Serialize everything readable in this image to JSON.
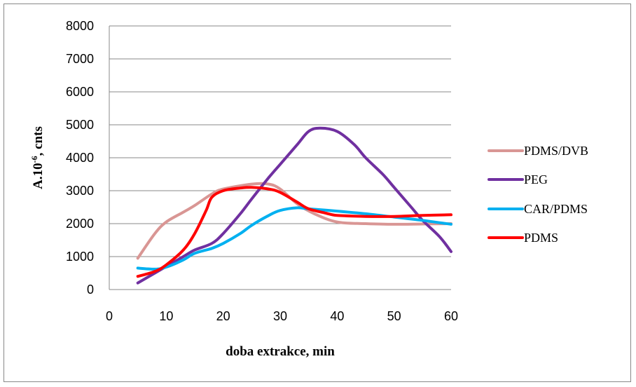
{
  "chart_data": {
    "type": "line",
    "title": "",
    "xlabel": "doba extrakce, min",
    "ylabel_main": "A.10",
    "ylabel_sup": "-6",
    "ylabel_rest": ", cnts",
    "xlim": [
      0,
      60
    ],
    "ylim": [
      0,
      8000
    ],
    "x_ticks": [
      "0",
      "10",
      "20",
      "30",
      "40",
      "50",
      "60"
    ],
    "y_ticks": [
      "0",
      "1000",
      "2000",
      "3000",
      "4000",
      "5000",
      "6000",
      "7000",
      "8000"
    ],
    "grid": "horizontal",
    "legend_position": "right",
    "series": [
      {
        "name": "PDMS/DVB",
        "color": "#D99694",
        "points": [
          [
            5,
            950
          ],
          [
            8,
            1700
          ],
          [
            10,
            2050
          ],
          [
            13,
            2350
          ],
          [
            15,
            2550
          ],
          [
            18,
            2900
          ],
          [
            20,
            3050
          ],
          [
            25,
            3200
          ],
          [
            28,
            3200
          ],
          [
            30,
            3050
          ],
          [
            33,
            2600
          ],
          [
            36,
            2300
          ],
          [
            40,
            2050
          ],
          [
            45,
            2000
          ],
          [
            50,
            1980
          ],
          [
            55,
            1990
          ],
          [
            60,
            2000
          ]
        ]
      },
      {
        "name": "PEG",
        "color": "#7030A0",
        "points": [
          [
            5,
            200
          ],
          [
            8,
            500
          ],
          [
            10,
            700
          ],
          [
            13,
            1000
          ],
          [
            15,
            1200
          ],
          [
            18,
            1400
          ],
          [
            20,
            1700
          ],
          [
            23,
            2300
          ],
          [
            25,
            2750
          ],
          [
            28,
            3400
          ],
          [
            30,
            3800
          ],
          [
            33,
            4400
          ],
          [
            35,
            4800
          ],
          [
            37,
            4900
          ],
          [
            40,
            4800
          ],
          [
            43,
            4400
          ],
          [
            45,
            4000
          ],
          [
            48,
            3500
          ],
          [
            50,
            3100
          ],
          [
            53,
            2500
          ],
          [
            55,
            2100
          ],
          [
            58,
            1600
          ],
          [
            60,
            1150
          ]
        ]
      },
      {
        "name": "CAR/PDMS",
        "color": "#00B0F0",
        "points": [
          [
            5,
            650
          ],
          [
            8,
            620
          ],
          [
            10,
            680
          ],
          [
            13,
            900
          ],
          [
            15,
            1100
          ],
          [
            18,
            1250
          ],
          [
            20,
            1400
          ],
          [
            23,
            1700
          ],
          [
            25,
            1950
          ],
          [
            28,
            2250
          ],
          [
            30,
            2400
          ],
          [
            33,
            2480
          ],
          [
            35,
            2450
          ],
          [
            40,
            2380
          ],
          [
            45,
            2300
          ],
          [
            50,
            2200
          ],
          [
            55,
            2100
          ],
          [
            60,
            1980
          ]
        ]
      },
      {
        "name": "PDMS",
        "color": "#FF0000",
        "points": [
          [
            5,
            400
          ],
          [
            8,
            550
          ],
          [
            10,
            750
          ],
          [
            13,
            1200
          ],
          [
            15,
            1700
          ],
          [
            17,
            2400
          ],
          [
            18,
            2800
          ],
          [
            20,
            3000
          ],
          [
            23,
            3080
          ],
          [
            25,
            3100
          ],
          [
            28,
            3050
          ],
          [
            30,
            2950
          ],
          [
            33,
            2650
          ],
          [
            35,
            2450
          ],
          [
            38,
            2320
          ],
          [
            40,
            2250
          ],
          [
            45,
            2220
          ],
          [
            50,
            2220
          ],
          [
            55,
            2250
          ],
          [
            60,
            2270
          ]
        ]
      }
    ]
  }
}
